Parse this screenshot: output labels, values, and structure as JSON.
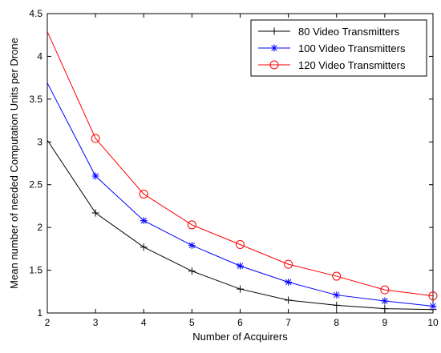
{
  "chart_data": {
    "type": "line",
    "title": "",
    "xlabel": "Number of Acquirers",
    "ylabel": "Mean number of needed Computation Units per Drone",
    "x": [
      2,
      3,
      4,
      5,
      6,
      7,
      8,
      9,
      10
    ],
    "xlim": [
      2,
      10
    ],
    "ylim": [
      1,
      4.5
    ],
    "xticks": [
      "2",
      "3",
      "4",
      "5",
      "6",
      "7",
      "8",
      "9",
      "10"
    ],
    "yticks": [
      "1",
      "1.5",
      "2",
      "2.5",
      "3",
      "3.5",
      "4",
      "4.5"
    ],
    "grid": false,
    "legend_position": "top-right",
    "series": [
      {
        "name": "80 Video Transmitters",
        "color": "#000000",
        "marker": "plus",
        "values": [
          3.02,
          2.17,
          1.77,
          1.49,
          1.28,
          1.15,
          1.09,
          1.05,
          1.04
        ]
      },
      {
        "name": "100 Video Transmitters",
        "color": "#0000ff",
        "marker": "star",
        "values": [
          3.69,
          2.6,
          2.08,
          1.79,
          1.55,
          1.36,
          1.21,
          1.14,
          1.08
        ]
      },
      {
        "name": "120 Video Transmitters",
        "color": "#ff0000",
        "marker": "circle",
        "values": [
          4.29,
          3.04,
          2.39,
          2.03,
          1.8,
          1.57,
          1.43,
          1.27,
          1.2
        ]
      }
    ]
  }
}
